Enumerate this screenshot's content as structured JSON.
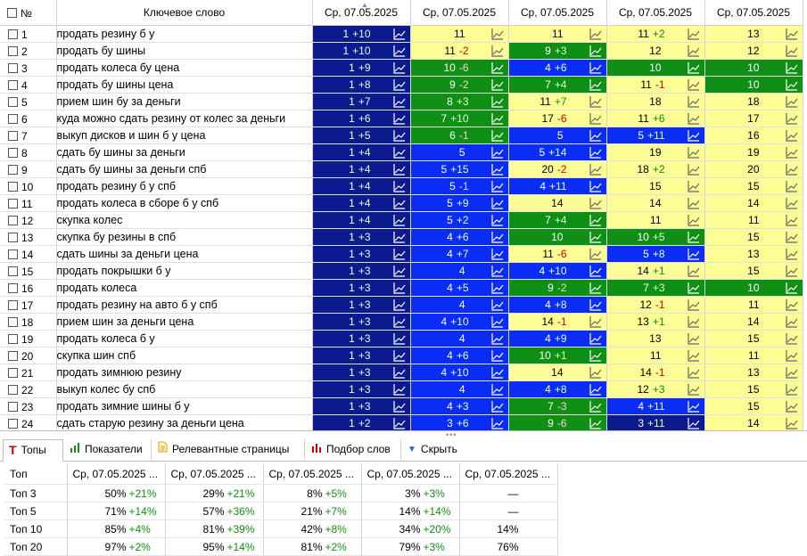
{
  "header": {
    "num": "№",
    "keyword": "Ключевое слово",
    "dates": [
      "Ср, 07.05.2025",
      "Ср, 07.05.2025",
      "Ср, 07.05.2025",
      "Ср, 07.05.2025",
      "Ср, 07.05.2025"
    ]
  },
  "rows": [
    {
      "n": "1",
      "kw": "продать резину б у",
      "c": [
        [
          "1",
          "+10",
          "dark"
        ],
        [
          "11",
          "",
          "yellow"
        ],
        [
          "11",
          "",
          "yellow"
        ],
        [
          "11",
          "+2",
          "yellow"
        ],
        [
          "13",
          "",
          "yellow"
        ]
      ]
    },
    {
      "n": "2",
      "kw": "продать бу шины",
      "c": [
        [
          "1",
          "+10",
          "dark"
        ],
        [
          "11",
          "-2",
          "yellow"
        ],
        [
          "9",
          "+3",
          "green"
        ],
        [
          "12",
          "",
          "yellow"
        ],
        [
          "12",
          "",
          "yellow"
        ]
      ]
    },
    {
      "n": "3",
      "kw": "продать колеса бу цена",
      "c": [
        [
          "1",
          "+9",
          "dark"
        ],
        [
          "10",
          "-6",
          "green"
        ],
        [
          "4",
          "+6",
          "blue"
        ],
        [
          "10",
          "",
          "green"
        ],
        [
          "10",
          "",
          "green"
        ]
      ]
    },
    {
      "n": "4",
      "kw": "продать бу шины цена",
      "c": [
        [
          "1",
          "+8",
          "dark"
        ],
        [
          "9",
          "-2",
          "green"
        ],
        [
          "7",
          "+4",
          "green"
        ],
        [
          "11",
          "-1",
          "yellow"
        ],
        [
          "10",
          "",
          "green"
        ]
      ]
    },
    {
      "n": "5",
      "kw": "прием шин бу за деньги",
      "c": [
        [
          "1",
          "+7",
          "dark"
        ],
        [
          "8",
          "+3",
          "green"
        ],
        [
          "11",
          "+7",
          "yellow"
        ],
        [
          "18",
          "",
          "yellow"
        ],
        [
          "18",
          "",
          "yellow"
        ]
      ]
    },
    {
      "n": "6",
      "kw": "куда можно сдать резину от колес за деньги",
      "c": [
        [
          "1",
          "+6",
          "dark"
        ],
        [
          "7",
          "+10",
          "green"
        ],
        [
          "17",
          "-6",
          "yellow"
        ],
        [
          "11",
          "+6",
          "yellow"
        ],
        [
          "17",
          "",
          "yellow"
        ]
      ]
    },
    {
      "n": "7",
      "kw": "выкуп дисков и шин б у цена",
      "c": [
        [
          "1",
          "+5",
          "dark"
        ],
        [
          "6",
          "-1",
          "green"
        ],
        [
          "5",
          "",
          "blue"
        ],
        [
          "5",
          "+11",
          "blue"
        ],
        [
          "16",
          "",
          "yellow"
        ]
      ]
    },
    {
      "n": "8",
      "kw": "сдать бу шины за деньги",
      "c": [
        [
          "1",
          "+4",
          "dark"
        ],
        [
          "5",
          "",
          "blue"
        ],
        [
          "5",
          "+14",
          "blue"
        ],
        [
          "19",
          "",
          "yellow"
        ],
        [
          "19",
          "",
          "yellow"
        ]
      ]
    },
    {
      "n": "9",
      "kw": "сдать бу шины за деньги спб",
      "c": [
        [
          "1",
          "+4",
          "dark"
        ],
        [
          "5",
          "+15",
          "blue"
        ],
        [
          "20",
          "-2",
          "yellow"
        ],
        [
          "18",
          "+2",
          "yellow"
        ],
        [
          "20",
          "",
          "yellow"
        ]
      ]
    },
    {
      "n": "10",
      "kw": "продать резину б у спб",
      "c": [
        [
          "1",
          "+4",
          "dark"
        ],
        [
          "5",
          "-1",
          "blue"
        ],
        [
          "4",
          "+11",
          "blue"
        ],
        [
          "15",
          "",
          "yellow"
        ],
        [
          "15",
          "",
          "yellow"
        ]
      ]
    },
    {
      "n": "11",
      "kw": "продать колеса в сборе б у спб",
      "c": [
        [
          "1",
          "+4",
          "dark"
        ],
        [
          "5",
          "+9",
          "blue"
        ],
        [
          "14",
          "",
          "yellow"
        ],
        [
          "14",
          "",
          "yellow"
        ],
        [
          "14",
          "",
          "yellow"
        ]
      ]
    },
    {
      "n": "12",
      "kw": "скупка колес",
      "c": [
        [
          "1",
          "+4",
          "dark"
        ],
        [
          "5",
          "+2",
          "blue"
        ],
        [
          "7",
          "+4",
          "green"
        ],
        [
          "11",
          "",
          "yellow"
        ],
        [
          "11",
          "",
          "yellow"
        ]
      ]
    },
    {
      "n": "13",
      "kw": "скупка бу резины в спб",
      "c": [
        [
          "1",
          "+3",
          "dark"
        ],
        [
          "4",
          "+6",
          "blue"
        ],
        [
          "10",
          "",
          "green"
        ],
        [
          "10",
          "+5",
          "green"
        ],
        [
          "15",
          "",
          "yellow"
        ]
      ]
    },
    {
      "n": "14",
      "kw": "сдать шины за деньги цена",
      "c": [
        [
          "1",
          "+3",
          "dark"
        ],
        [
          "4",
          "+7",
          "blue"
        ],
        [
          "11",
          "-6",
          "yellow"
        ],
        [
          "5",
          "+8",
          "blue"
        ],
        [
          "13",
          "",
          "yellow"
        ]
      ]
    },
    {
      "n": "15",
      "kw": "продать покрышки б у",
      "c": [
        [
          "1",
          "+3",
          "dark"
        ],
        [
          "4",
          "",
          "blue"
        ],
        [
          "4",
          "+10",
          "blue"
        ],
        [
          "14",
          "+1",
          "yellow"
        ],
        [
          "15",
          "",
          "yellow"
        ]
      ]
    },
    {
      "n": "16",
      "kw": "продать колеса",
      "c": [
        [
          "1",
          "+3",
          "dark"
        ],
        [
          "4",
          "+5",
          "blue"
        ],
        [
          "9",
          "-2",
          "green"
        ],
        [
          "7",
          "+3",
          "green"
        ],
        [
          "10",
          "",
          "green"
        ]
      ]
    },
    {
      "n": "17",
      "kw": "продать резину на авто б у спб",
      "c": [
        [
          "1",
          "+3",
          "dark"
        ],
        [
          "4",
          "",
          "blue"
        ],
        [
          "4",
          "+8",
          "blue"
        ],
        [
          "12",
          "-1",
          "yellow"
        ],
        [
          "11",
          "",
          "yellow"
        ]
      ]
    },
    {
      "n": "18",
      "kw": "прием шин за деньги цена",
      "c": [
        [
          "1",
          "+3",
          "dark"
        ],
        [
          "4",
          "+10",
          "blue"
        ],
        [
          "14",
          "-1",
          "yellow"
        ],
        [
          "13",
          "+1",
          "yellow"
        ],
        [
          "14",
          "",
          "yellow"
        ]
      ]
    },
    {
      "n": "19",
      "kw": "продать колеса б у",
      "c": [
        [
          "1",
          "+3",
          "dark"
        ],
        [
          "4",
          "",
          "blue"
        ],
        [
          "4",
          "+9",
          "blue"
        ],
        [
          "13",
          "",
          "yellow"
        ],
        [
          "15",
          "",
          "yellow"
        ]
      ]
    },
    {
      "n": "20",
      "kw": "скупка шин спб",
      "c": [
        [
          "1",
          "+3",
          "dark"
        ],
        [
          "4",
          "+6",
          "blue"
        ],
        [
          "10",
          "+1",
          "green"
        ],
        [
          "11",
          "",
          "yellow"
        ],
        [
          "11",
          "",
          "yellow"
        ]
      ]
    },
    {
      "n": "21",
      "kw": "продать зимнюю резину",
      "c": [
        [
          "1",
          "+3",
          "dark"
        ],
        [
          "4",
          "+10",
          "blue"
        ],
        [
          "14",
          "",
          "yellow"
        ],
        [
          "14",
          "-1",
          "yellow"
        ],
        [
          "13",
          "",
          "yellow"
        ]
      ]
    },
    {
      "n": "22",
      "kw": "выкуп колес бу спб",
      "c": [
        [
          "1",
          "+3",
          "dark"
        ],
        [
          "4",
          "",
          "blue"
        ],
        [
          "4",
          "+8",
          "blue"
        ],
        [
          "12",
          "+3",
          "yellow"
        ],
        [
          "15",
          "",
          "yellow"
        ]
      ]
    },
    {
      "n": "23",
      "kw": "продать зимние шины б у",
      "c": [
        [
          "1",
          "+3",
          "dark"
        ],
        [
          "4",
          "+3",
          "blue"
        ],
        [
          "7",
          "-3",
          "green"
        ],
        [
          "4",
          "+11",
          "blue"
        ],
        [
          "15",
          "",
          "yellow"
        ]
      ]
    },
    {
      "n": "24",
      "kw": "сдать старую резину за деньги цена",
      "c": [
        [
          "1",
          "+2",
          "dark"
        ],
        [
          "3",
          "+6",
          "blue"
        ],
        [
          "9",
          "-6",
          "green"
        ],
        [
          "3",
          "+11",
          "dark"
        ],
        [
          "14",
          "",
          "yellow"
        ]
      ]
    }
  ],
  "tabs": [
    {
      "label": "Топы",
      "icon": "t-letter-icon",
      "active": true
    },
    {
      "label": "Показатели",
      "icon": "bar-chart-icon"
    },
    {
      "label": "Релевантные страницы",
      "icon": "document-icon"
    },
    {
      "label": "Подбор слов",
      "icon": "column-chart-icon"
    },
    {
      "label": "Скрыть",
      "icon": "triangle-down-icon"
    }
  ],
  "tops": {
    "header": [
      "Топ",
      "Ср, 07.05.2025 ...",
      "Ср, 07.05.2025 ...",
      "Ср, 07.05.2025 ...",
      "Ср, 07.05.2025 ...",
      "Ср, 07.05.2025 ..."
    ],
    "rows": [
      {
        "label": "Топ 3",
        "v": [
          [
            "50%",
            "+21%"
          ],
          [
            "29%",
            "+21%"
          ],
          [
            "8%",
            "+5%"
          ],
          [
            "3%",
            "+3%"
          ],
          [
            "—",
            ""
          ]
        ]
      },
      {
        "label": "Топ 5",
        "v": [
          [
            "71%",
            "+14%"
          ],
          [
            "57%",
            "+36%"
          ],
          [
            "21%",
            "+7%"
          ],
          [
            "14%",
            "+14%"
          ],
          [
            "—",
            ""
          ]
        ]
      },
      {
        "label": "Топ 10",
        "v": [
          [
            "85%",
            "+4%"
          ],
          [
            "81%",
            "+39%"
          ],
          [
            "42%",
            "+8%"
          ],
          [
            "34%",
            "+20%"
          ],
          [
            "14%",
            ""
          ]
        ]
      },
      {
        "label": "Топ 20",
        "v": [
          [
            "97%",
            "+2%"
          ],
          [
            "95%",
            "+14%"
          ],
          [
            "81%",
            "+2%"
          ],
          [
            "79%",
            "+3%"
          ],
          [
            "76%",
            ""
          ]
        ]
      }
    ]
  }
}
